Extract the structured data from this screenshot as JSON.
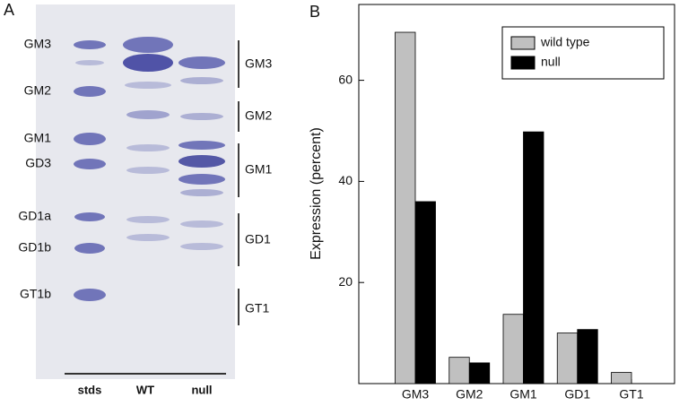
{
  "panel_a": {
    "label": "A",
    "standards": [
      "GM3",
      "GM2",
      "GM1",
      "GD3",
      "GD1a",
      "GD1b",
      "GT1b"
    ],
    "lanes": [
      "stds",
      "WT",
      "null"
    ],
    "groups": [
      "GM3",
      "GM2",
      "GM1",
      "GD1",
      "GT1"
    ]
  },
  "chart_data": {
    "type": "bar",
    "label": "B",
    "y_label": "Expression (percent)",
    "categories": [
      "GM3",
      "GM2",
      "GM1",
      "GD1",
      "GT1"
    ],
    "series": [
      {
        "name": "wild type",
        "color": "#c0c0c0",
        "values": [
          69.5,
          5.2,
          13.7,
          10,
          2.2
        ]
      },
      {
        "name": "null",
        "color": "#000000",
        "values": [
          36,
          4.1,
          49.8,
          10.7,
          0
        ]
      }
    ],
    "ylim": [
      0,
      75
    ],
    "yticks": [
      20,
      40,
      60
    ],
    "legend": "top-right"
  }
}
